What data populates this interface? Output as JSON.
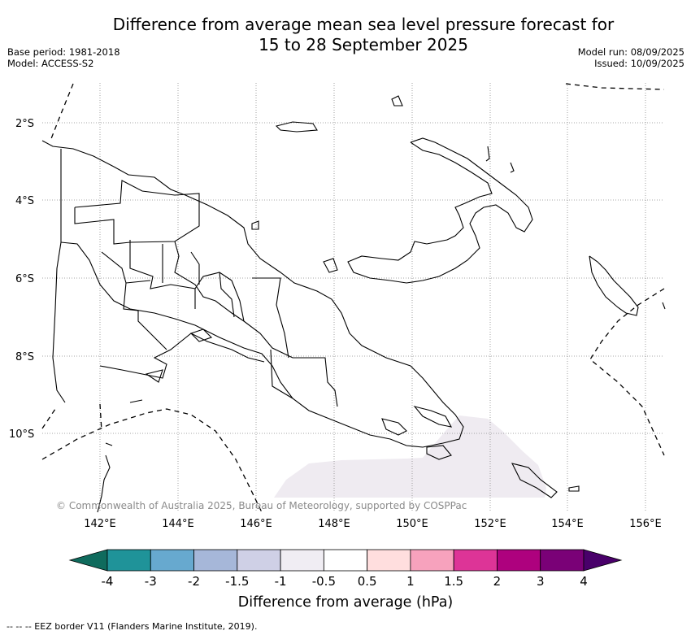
{
  "title_line1": "Difference from average mean sea level pressure forecast for",
  "title_line2": "15 to 28 September 2025",
  "base_period": "Base period: 1981-2018",
  "model": "Model: ACCESS-S2",
  "model_run": "Model run: 08/09/2025",
  "issued": "Issued: 10/09/2025",
  "lat_labels": [
    "2°S",
    "4°S",
    "6°S",
    "8°S",
    "10°S"
  ],
  "lon_labels": [
    "142°E",
    "144°E",
    "146°E",
    "148°E",
    "150°E",
    "152°E",
    "154°E",
    "156°E"
  ],
  "copyright": "© Commonwealth of Australia 2025, Bureau of Meteorology, supported by COSPPac",
  "colorbar": {
    "title": "Difference from average (hPa)",
    "ticks": [
      "-4",
      "-3",
      "-2",
      "-1.5",
      "-1",
      "-0.5",
      "0.5",
      "1",
      "1.5",
      "2",
      "3",
      "4"
    ],
    "colors": [
      "#0f6b5d",
      "#1f9399",
      "#67a9cf",
      "#a6b7d9",
      "#cfd0e6",
      "#f0edf3",
      "#ffffff",
      "#ffdede",
      "#f7a2bd",
      "#dd3497",
      "#ae017e",
      "#7a0177",
      "#49006a"
    ]
  },
  "anomaly_region_color": "#efebf1",
  "footer": "--  --  -- EEZ border V11 (Flanders Marine Institute, 2019)."
}
